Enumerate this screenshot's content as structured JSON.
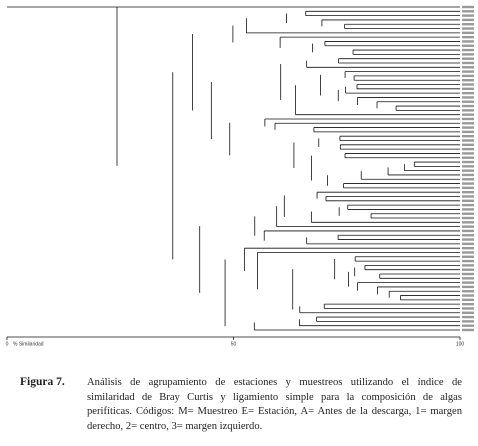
{
  "figure": {
    "axis": {
      "label": "% Similaridad",
      "range": [
        0,
        100
      ],
      "ticks": [
        0,
        50,
        100
      ]
    }
  },
  "caption": {
    "label": "Figura 7.",
    "lines": [
      "Análisis de agrupamiento de estaciones y muestreos utilizando el índice de",
      "similaridad de Bray Curtis y ligamiento simple para la composición de algas",
      "perifíticas. Códigos: M= Muestreo E= Estación, A= Antes de la descarga, 1= margen",
      "derecho, 2= centro, 3= margen izquierdo."
    ]
  }
}
